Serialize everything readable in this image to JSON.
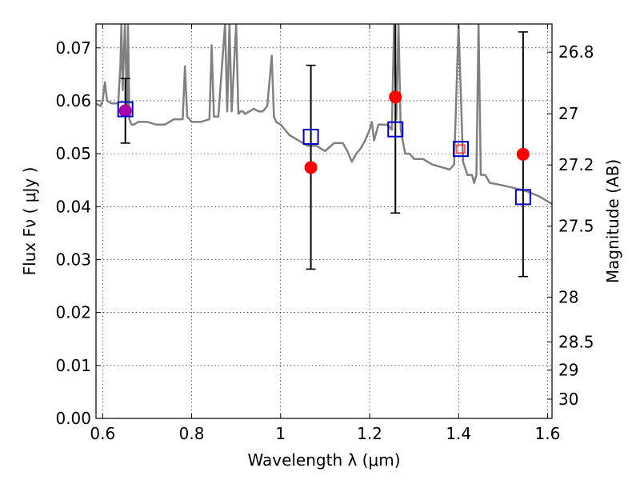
{
  "chart_data": {
    "type": "scatter",
    "xlabel": "Wavelength  λ (μm)",
    "ylabel": "Flux  Fν  ( μJy )",
    "y2label": "Magnitude (AB)",
    "xlim": [
      0.585,
      1.61
    ],
    "ylim": [
      0.0,
      0.0745
    ],
    "grid": true,
    "xticks": [
      0.6,
      0.8,
      1.0,
      1.2,
      1.4,
      1.6
    ],
    "xtick_labels": [
      "0.6",
      "0.8",
      "1",
      "1.2",
      "1.4",
      "1.6"
    ],
    "yticks": [
      0.0,
      0.01,
      0.02,
      0.03,
      0.04,
      0.05,
      0.06,
      0.07
    ],
    "ytick_labels": [
      "0.00",
      "0.01",
      "0.02",
      "0.03",
      "0.04",
      "0.05",
      "0.06",
      "0.07"
    ],
    "mag_ticks": [
      26.8,
      27,
      27.2,
      27.5,
      28,
      28.5,
      29,
      30
    ],
    "mag_tick_labels": [
      "26.8",
      "27",
      "27.2",
      "27.5",
      "28",
      "28.5",
      "29",
      "30"
    ],
    "series": [
      {
        "kind": "spectrum",
        "color": "#808080",
        "x": [
          0.585,
          0.595,
          0.6,
          0.605,
          0.61,
          0.62,
          0.635,
          0.64,
          0.642,
          0.645,
          0.65,
          0.655,
          0.657,
          0.66,
          0.665,
          0.67,
          0.68,
          0.7,
          0.72,
          0.74,
          0.76,
          0.78,
          0.785,
          0.79,
          0.8,
          0.82,
          0.84,
          0.845,
          0.85,
          0.86,
          0.875,
          0.88,
          0.885,
          0.89,
          0.9,
          0.905,
          0.91,
          0.915,
          0.92,
          0.93,
          0.94,
          0.95,
          0.96,
          0.97,
          0.98,
          0.985,
          0.99,
          1.0,
          1.02,
          1.04,
          1.06,
          1.08,
          1.1,
          1.12,
          1.14,
          1.15,
          1.16,
          1.17,
          1.18,
          1.19,
          1.2,
          1.205,
          1.21,
          1.22,
          1.24,
          1.25,
          1.255,
          1.26,
          1.265,
          1.27,
          1.28,
          1.29,
          1.3,
          1.32,
          1.34,
          1.36,
          1.38,
          1.39,
          1.4,
          1.41,
          1.42,
          1.43,
          1.435,
          1.44,
          1.445,
          1.45,
          1.46,
          1.47,
          1.5,
          1.55,
          1.58,
          1.61
        ],
        "y": [
          0.0595,
          0.059,
          0.06,
          0.0635,
          0.06,
          0.0595,
          0.0595,
          0.067,
          0.0745,
          0.062,
          0.0745,
          0.058,
          0.0745,
          0.0565,
          0.0555,
          0.0555,
          0.056,
          0.056,
          0.0555,
          0.0555,
          0.0565,
          0.0565,
          0.0665,
          0.057,
          0.056,
          0.056,
          0.0565,
          0.0705,
          0.057,
          0.057,
          0.0745,
          0.058,
          0.0745,
          0.058,
          0.0745,
          0.0575,
          0.058,
          0.058,
          0.0575,
          0.058,
          0.0585,
          0.058,
          0.058,
          0.059,
          0.0685,
          0.057,
          0.056,
          0.0555,
          0.0535,
          0.0525,
          0.0515,
          0.0515,
          0.0505,
          0.052,
          0.052,
          0.0505,
          0.0485,
          0.05,
          0.051,
          0.0525,
          0.0545,
          0.056,
          0.0525,
          0.0555,
          0.0555,
          0.0545,
          0.0745,
          0.0565,
          0.0745,
          0.0545,
          0.05,
          0.05,
          0.049,
          0.049,
          0.048,
          0.0475,
          0.047,
          0.048,
          0.0745,
          0.0485,
          0.046,
          0.046,
          0.0445,
          0.046,
          0.0745,
          0.046,
          0.046,
          0.0445,
          0.044,
          0.043,
          0.042,
          0.0405
        ]
      },
      {
        "kind": "observed",
        "color": "#000000",
        "marker": "errorbar",
        "x": [
          0.651,
          1.068,
          1.258,
          1.545
        ],
        "y": [
          0.0581,
          0.0474,
          0.0545,
          0.0499
        ],
        "yerr_low": [
          0.052,
          0.0282,
          0.0388,
          0.0268
        ],
        "yerr_high": [
          0.0642,
          0.0667,
          0.0745,
          0.073
        ]
      },
      {
        "kind": "model-points",
        "color": "#ff0000",
        "marker": "filled-circle",
        "x": [
          0.651,
          1.068,
          1.258,
          1.545
        ],
        "y": [
          0.0581,
          0.0474,
          0.0607,
          0.0499
        ]
      },
      {
        "kind": "synthetic-photometry",
        "color": "#0000cc",
        "marker": "open-square",
        "x": [
          0.651,
          1.068,
          1.258,
          1.405,
          1.545
        ],
        "y": [
          0.0584,
          0.0532,
          0.0546,
          0.0509,
          0.0418
        ]
      }
    ],
    "highlight": {
      "x": 0.651,
      "y": 0.0581,
      "color": "#aa00aa"
    },
    "inner_mark": {
      "x": 1.405,
      "y": 0.0509,
      "color": "#ff0000"
    }
  }
}
